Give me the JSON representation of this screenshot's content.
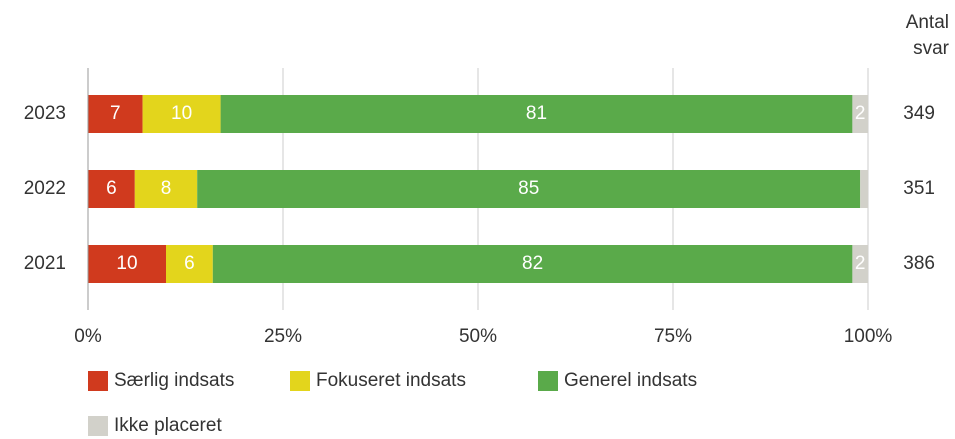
{
  "chart_data": {
    "type": "stacked-bar-horizontal",
    "categories": [
      "2023",
      "2022",
      "2021"
    ],
    "series": [
      {
        "name": "Særlig indsats",
        "color": "#d03a1e",
        "values": [
          7,
          6,
          10
        ]
      },
      {
        "name": "Fokuseret indsats",
        "color": "#e3d51c",
        "values": [
          10,
          8,
          6
        ]
      },
      {
        "name": "Generel indsats",
        "color": "#5aaa4a",
        "values": [
          81,
          85,
          82
        ]
      },
      {
        "name": "Ikke placeret",
        "color": "#d2d1ca",
        "values": [
          2,
          1,
          2
        ],
        "value_labels": [
          "2",
          null,
          "2"
        ]
      }
    ],
    "xlim": [
      0,
      100
    ],
    "xticks": [
      {
        "value": 0,
        "label": "0%"
      },
      {
        "value": 25,
        "label": "25%"
      },
      {
        "value": 50,
        "label": "50%"
      },
      {
        "value": 75,
        "label": "75%"
      },
      {
        "value": 100,
        "label": "100%"
      }
    ],
    "grid": true,
    "counts_label": "Antal svar",
    "counts": [
      349,
      351,
      386
    ]
  }
}
